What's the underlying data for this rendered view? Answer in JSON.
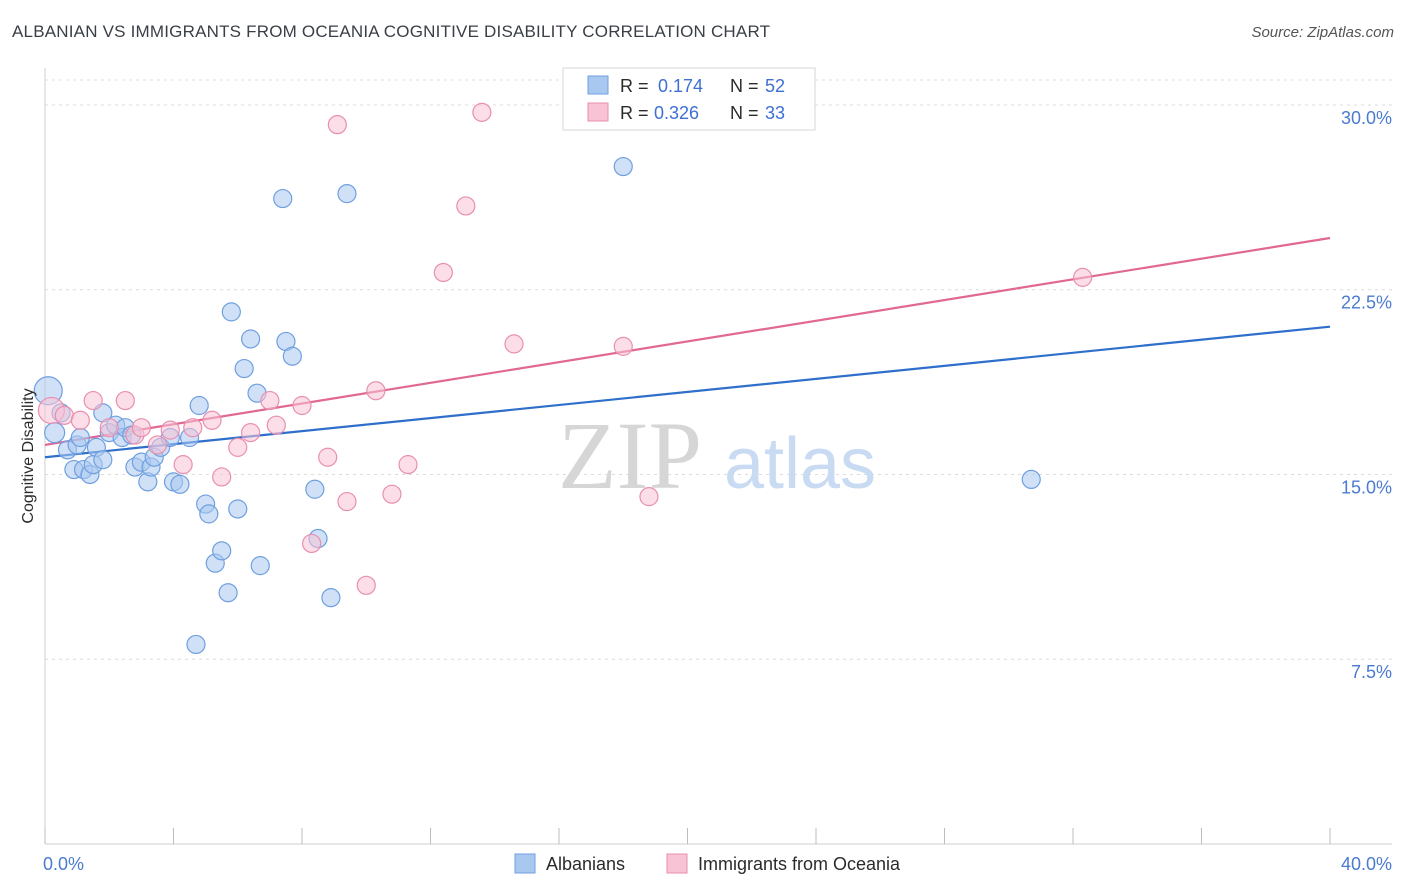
{
  "title": "ALBANIAN VS IMMIGRANTS FROM OCEANIA COGNITIVE DISABILITY CORRELATION CHART",
  "source": "Source: ZipAtlas.com",
  "watermark": {
    "zip": "ZIP",
    "atlas": "atlas"
  },
  "chart_data": {
    "type": "scatter",
    "ylabel": "Cognitive Disability",
    "xlim": [
      0,
      40
    ],
    "ylim": [
      0,
      31.5
    ],
    "x_tick_labels": [
      "0.0%",
      "40.0%"
    ],
    "y_ticks": [
      7.5,
      15.0,
      22.5,
      30.0
    ],
    "y_tick_labels": [
      "7.5%",
      "15.0%",
      "22.5%",
      "30.0%"
    ],
    "grid": true,
    "legend_top": [
      {
        "r_label": "R =",
        "r_value": "0.174",
        "n_label": "N =",
        "n_value": "52"
      },
      {
        "r_label": "R =",
        "r_value": "0.326",
        "n_label": "N =",
        "n_value": "33"
      }
    ],
    "series": [
      {
        "name": "Albanians",
        "color": "#6f9fe0",
        "fill": "#a9c8f0",
        "line_color": "#2f6fcc",
        "trend": [
          [
            0,
            15.7
          ],
          [
            40,
            21.0
          ]
        ],
        "points": [
          [
            0.1,
            18.4,
            14
          ],
          [
            0.3,
            16.7,
            10
          ],
          [
            0.5,
            17.5,
            9
          ],
          [
            0.7,
            16.0,
            9
          ],
          [
            0.9,
            15.2,
            9
          ],
          [
            1.0,
            16.2,
            9
          ],
          [
            1.1,
            16.5,
            9
          ],
          [
            1.2,
            15.2,
            9
          ],
          [
            1.4,
            15.0,
            9
          ],
          [
            1.5,
            15.4,
            9
          ],
          [
            1.6,
            16.1,
            9
          ],
          [
            1.8,
            15.6,
            9
          ],
          [
            1.8,
            17.5,
            9
          ],
          [
            2.0,
            16.7,
            9
          ],
          [
            2.2,
            17.0,
            9
          ],
          [
            2.4,
            16.5,
            9
          ],
          [
            2.5,
            16.9,
            9
          ],
          [
            2.7,
            16.6,
            9
          ],
          [
            2.8,
            15.3,
            9
          ],
          [
            3.0,
            15.5,
            9
          ],
          [
            3.2,
            14.7,
            9
          ],
          [
            3.3,
            15.3,
            9
          ],
          [
            3.4,
            15.7,
            9
          ],
          [
            3.6,
            16.1,
            9
          ],
          [
            3.9,
            16.5,
            9
          ],
          [
            4.0,
            14.7,
            9
          ],
          [
            4.2,
            14.6,
            9
          ],
          [
            4.5,
            16.5,
            9
          ],
          [
            4.7,
            8.1,
            9
          ],
          [
            4.8,
            17.8,
            9
          ],
          [
            5.0,
            13.8,
            9
          ],
          [
            5.1,
            13.4,
            9
          ],
          [
            5.3,
            11.4,
            9
          ],
          [
            5.5,
            11.9,
            9
          ],
          [
            5.7,
            10.2,
            9
          ],
          [
            5.8,
            21.6,
            9
          ],
          [
            6.0,
            13.6,
            9
          ],
          [
            6.2,
            19.3,
            9
          ],
          [
            6.4,
            20.5,
            9
          ],
          [
            6.6,
            18.3,
            9
          ],
          [
            6.7,
            11.3,
            9
          ],
          [
            7.4,
            26.2,
            9
          ],
          [
            7.5,
            20.4,
            9
          ],
          [
            7.7,
            19.8,
            9
          ],
          [
            8.4,
            14.4,
            9
          ],
          [
            8.5,
            12.4,
            9
          ],
          [
            8.9,
            10.0,
            9
          ],
          [
            9.4,
            26.4,
            9
          ],
          [
            18.0,
            27.5,
            9
          ],
          [
            30.7,
            14.8,
            9
          ]
        ]
      },
      {
        "name": "Immigrants from Oceania",
        "color": "#e88fb0",
        "fill": "#f7c3d5",
        "line_color": "#e06892",
        "trend": [
          [
            0,
            16.2
          ],
          [
            40,
            24.6
          ]
        ],
        "points": [
          [
            0.2,
            17.6,
            13
          ],
          [
            0.6,
            17.4,
            9
          ],
          [
            1.1,
            17.2,
            9
          ],
          [
            1.5,
            18.0,
            9
          ],
          [
            2.0,
            16.9,
            9
          ],
          [
            2.5,
            18.0,
            9
          ],
          [
            2.8,
            16.6,
            9
          ],
          [
            3.0,
            16.9,
            9
          ],
          [
            3.5,
            16.2,
            9
          ],
          [
            3.9,
            16.8,
            9
          ],
          [
            4.3,
            15.4,
            9
          ],
          [
            4.6,
            16.9,
            9
          ],
          [
            5.2,
            17.2,
            9
          ],
          [
            5.5,
            14.9,
            9
          ],
          [
            6.0,
            16.1,
            9
          ],
          [
            6.4,
            16.7,
            9
          ],
          [
            7.0,
            18.0,
            9
          ],
          [
            7.2,
            17.0,
            9
          ],
          [
            8.0,
            17.8,
            9
          ],
          [
            8.3,
            12.2,
            9
          ],
          [
            8.8,
            15.7,
            9
          ],
          [
            9.1,
            29.2,
            9
          ],
          [
            9.4,
            13.9,
            9
          ],
          [
            10.0,
            10.5,
            9
          ],
          [
            10.3,
            18.4,
            9
          ],
          [
            10.8,
            14.2,
            9
          ],
          [
            11.3,
            15.4,
            9
          ],
          [
            12.4,
            23.2,
            9
          ],
          [
            13.1,
            25.9,
            9
          ],
          [
            13.6,
            29.7,
            9
          ],
          [
            14.6,
            20.3,
            9
          ],
          [
            18.0,
            20.2,
            9
          ],
          [
            18.8,
            14.1,
            9
          ],
          [
            32.3,
            23.0,
            9
          ]
        ]
      }
    ]
  }
}
